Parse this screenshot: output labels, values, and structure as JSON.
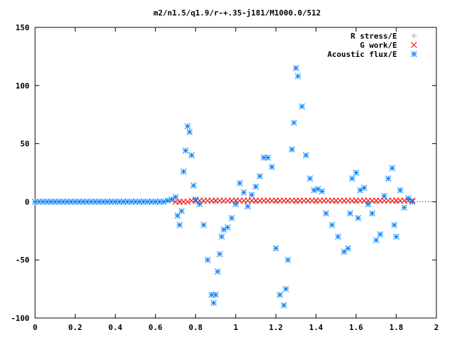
{
  "chart_data": {
    "type": "scatter",
    "title": "m2/n1.5/q1.9/r-+.35-j181/M1000.0/512",
    "xlabel": "",
    "ylabel": "",
    "xlim": [
      0,
      2
    ],
    "ylim": [
      -100,
      150
    ],
    "xticks": [
      0,
      0.2,
      0.4,
      0.6,
      0.8,
      1,
      1.2,
      1.4,
      1.6,
      1.8,
      2
    ],
    "xtick_labels": [
      "0",
      "0.2",
      "0.4",
      "0.6",
      "0.8",
      "1",
      "1.2",
      "1.4",
      "1.6",
      "1.8",
      "2"
    ],
    "yticks": [
      -100,
      -50,
      0,
      50,
      100,
      150
    ],
    "ytick_labels": [
      "-100",
      "-50",
      "0",
      "50",
      "100",
      "150"
    ],
    "grid": false,
    "legend_position": "top-right",
    "series": [
      {
        "name": "R stress/E",
        "marker": "plus",
        "color": "#a0a0a0",
        "x": [
          0.72,
          0.8,
          0.9,
          1.0,
          1.1,
          1.2,
          1.3,
          1.4,
          1.5,
          1.6,
          1.7,
          1.8,
          1.88
        ],
        "y": [
          0,
          0,
          0,
          0,
          0,
          0,
          0,
          0,
          0,
          0,
          0,
          0,
          0
        ]
      },
      {
        "name": "G work/E",
        "marker": "cross",
        "color": "#ff0000",
        "x": [
          0.7,
          0.72,
          0.74,
          0.76,
          0.78,
          0.8,
          0.82,
          0.84,
          0.86,
          0.88,
          0.9,
          0.92,
          0.94,
          0.96,
          0.98,
          1.0,
          1.02,
          1.04,
          1.06,
          1.08,
          1.1,
          1.12,
          1.14,
          1.16,
          1.18,
          1.2,
          1.22,
          1.24,
          1.26,
          1.28,
          1.3,
          1.32,
          1.34,
          1.36,
          1.38,
          1.4,
          1.42,
          1.44,
          1.46,
          1.48,
          1.5,
          1.52,
          1.54,
          1.56,
          1.58,
          1.6,
          1.62,
          1.64,
          1.66,
          1.68,
          1.7,
          1.72,
          1.74,
          1.76,
          1.78,
          1.8,
          1.82,
          1.84,
          1.86,
          1.88
        ],
        "y": [
          0,
          0,
          0,
          0,
          1,
          1,
          1,
          1,
          1,
          1,
          1,
          1,
          1,
          1,
          1,
          1,
          1,
          1,
          1,
          1,
          1,
          1,
          1,
          1,
          1,
          1,
          1,
          1,
          1,
          1,
          1,
          1,
          1,
          1,
          1,
          1,
          1,
          1,
          1,
          1,
          1,
          1,
          1,
          1,
          1,
          1,
          1,
          1,
          1,
          1,
          1,
          1,
          1,
          1,
          1,
          1,
          1,
          1,
          1,
          1
        ]
      },
      {
        "name": "Acoustic flux/E",
        "marker": "star",
        "color": "#0080ff",
        "x": [
          0.0,
          0.02,
          0.04,
          0.06,
          0.08,
          0.1,
          0.12,
          0.14,
          0.16,
          0.18,
          0.2,
          0.22,
          0.24,
          0.26,
          0.28,
          0.3,
          0.32,
          0.34,
          0.36,
          0.38,
          0.4,
          0.42,
          0.44,
          0.46,
          0.48,
          0.5,
          0.52,
          0.54,
          0.56,
          0.58,
          0.6,
          0.62,
          0.64,
          0.66,
          0.68,
          0.7,
          0.71,
          0.72,
          0.73,
          0.74,
          0.75,
          0.76,
          0.77,
          0.78,
          0.79,
          0.8,
          0.82,
          0.84,
          0.86,
          0.88,
          0.89,
          0.9,
          0.91,
          0.92,
          0.93,
          0.94,
          0.96,
          0.98,
          1.0,
          1.02,
          1.04,
          1.06,
          1.08,
          1.1,
          1.12,
          1.14,
          1.16,
          1.18,
          1.2,
          1.22,
          1.24,
          1.25,
          1.26,
          1.28,
          1.29,
          1.3,
          1.31,
          1.33,
          1.35,
          1.37,
          1.39,
          1.41,
          1.43,
          1.45,
          1.48,
          1.51,
          1.54,
          1.56,
          1.57,
          1.58,
          1.6,
          1.61,
          1.62,
          1.64,
          1.66,
          1.68,
          1.7,
          1.72,
          1.74,
          1.76,
          1.78,
          1.79,
          1.8,
          1.82,
          1.84,
          1.86,
          1.88
        ],
        "y": [
          0,
          0,
          0,
          0,
          0,
          0,
          0,
          0,
          0,
          0,
          0,
          0,
          0,
          0,
          0,
          0,
          0,
          0,
          0,
          0,
          0,
          0,
          0,
          0,
          0,
          0,
          0,
          0,
          0,
          0,
          0,
          0,
          0,
          1,
          2,
          4,
          -12,
          -20,
          -8,
          26,
          44,
          65,
          60,
          40,
          14,
          2,
          -2,
          -20,
          -50,
          -80,
          -87,
          -80,
          -60,
          -45,
          -30,
          -24,
          -22,
          -14,
          -2,
          16,
          8,
          -4,
          6,
          13,
          22,
          38,
          38,
          30,
          -40,
          -80,
          -89,
          -75,
          -50,
          45,
          68,
          115,
          108,
          82,
          40,
          20,
          10,
          11,
          9,
          -10,
          -20,
          -30,
          -43,
          -40,
          -10,
          20,
          25,
          -14,
          10,
          12,
          -2,
          -10,
          -33,
          -28,
          5,
          20,
          29,
          -20,
          -30,
          10,
          -5,
          3,
          0
        ]
      }
    ]
  }
}
